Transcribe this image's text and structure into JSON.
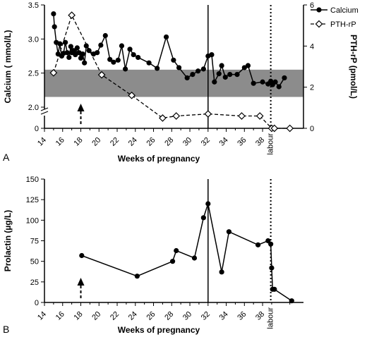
{
  "chart_data": [
    {
      "panel": "A",
      "type": "line",
      "xlabel": "Weeks of pregnancy",
      "ylabel": "Calcium ( mmol/L)",
      "y2label": "PTH-rP  (pmol/L)",
      "xticks": [
        "14",
        "16",
        "18",
        "20",
        "22",
        "24",
        "26",
        "28",
        "30",
        "32",
        "34",
        "36",
        "38"
      ],
      "xlim": [
        14,
        42.5
      ],
      "labour_label": "labour",
      "labour_week": 38.9,
      "event_week": 32,
      "arrow_week": 18,
      "y_axis_break": [
        0,
        2.0
      ],
      "ylim": [
        2.0,
        3.5
      ],
      "yticks": [
        "0",
        "2.0",
        "2.5",
        "3.0",
        "3.5"
      ],
      "y2lim": [
        0,
        6
      ],
      "y2ticks": [
        "0",
        "2",
        "4",
        "6"
      ],
      "reference_range": [
        2.15,
        2.55
      ],
      "legend_position": "top-right",
      "series": [
        {
          "name": "Calcium",
          "axis": "left",
          "marker": "filled-circle",
          "x": [
            15.0,
            15.1,
            15.3,
            15.5,
            15.7,
            15.9,
            16.1,
            16.3,
            16.5,
            16.7,
            16.9,
            17.0,
            17.2,
            17.4,
            17.6,
            17.8,
            18.0,
            18.2,
            18.4,
            18.6,
            18.9,
            19.4,
            19.8,
            20.2,
            20.7,
            21.2,
            21.6,
            22.1,
            22.5,
            22.9,
            23.4,
            23.8,
            24.3,
            25.5,
            26.4,
            27.4,
            28.2,
            28.8,
            29.7,
            30.3,
            30.9,
            31.5,
            32.0,
            32.4,
            32.7,
            33.2,
            33.5,
            33.9,
            34.4,
            35.2,
            36.0,
            36.4,
            37.0,
            38.0,
            38.6,
            38.9,
            39.1,
            39.4,
            39.8,
            40.4
          ],
          "y": [
            3.37,
            3.18,
            2.95,
            2.78,
            2.93,
            2.75,
            2.79,
            2.95,
            2.8,
            2.73,
            2.89,
            2.8,
            2.83,
            2.77,
            2.87,
            2.8,
            2.72,
            2.78,
            2.65,
            2.9,
            2.83,
            2.78,
            2.8,
            2.91,
            3.05,
            2.7,
            2.66,
            2.69,
            2.9,
            2.56,
            2.85,
            2.77,
            2.73,
            2.65,
            2.57,
            3.03,
            2.69,
            2.58,
            2.43,
            2.48,
            2.53,
            2.56,
            2.75,
            2.77,
            2.37,
            2.49,
            2.61,
            2.44,
            2.48,
            2.48,
            2.58,
            2.61,
            2.35,
            2.37,
            2.34,
            2.38,
            2.33,
            2.37,
            2.3,
            2.43
          ]
        },
        {
          "name": "PTH-rP",
          "axis": "right",
          "marker": "open-diamond",
          "x": [
            15.0,
            17.0,
            20.3,
            23.6,
            27.0,
            28.5,
            32.0,
            35.7,
            37.7,
            39.0,
            39.3,
            41.0
          ],
          "y": [
            2.7,
            5.5,
            2.6,
            1.6,
            0.5,
            0.6,
            0.7,
            0.6,
            0.6,
            0.0,
            0.0,
            0.0
          ]
        }
      ]
    },
    {
      "panel": "B",
      "type": "line",
      "xlabel": "Weeks of pregnancy",
      "ylabel": "Prolactin (µg/L)",
      "xticks": [
        "14",
        "16",
        "18",
        "20",
        "22",
        "24",
        "26",
        "28",
        "30",
        "32",
        "34",
        "36",
        "38"
      ],
      "xlim": [
        14,
        42.5
      ],
      "labour_label": "labour",
      "labour_week": 38.9,
      "event_week": 32,
      "arrow_week": 18,
      "ylim": [
        0,
        150
      ],
      "yticks": [
        "0",
        "25",
        "50",
        "75",
        "100",
        "125",
        "150"
      ],
      "series": [
        {
          "marker": "filled-circle",
          "x": [
            18.1,
            24.2,
            28.1,
            28.5,
            30.5,
            31.5,
            32.0,
            33.5,
            34.3,
            37.5,
            38.6,
            38.9,
            39.0,
            39.1,
            39.3,
            41.2
          ],
          "y": [
            57,
            32,
            50,
            63,
            54,
            103,
            120,
            37,
            86,
            70,
            75,
            71,
            42,
            16,
            16,
            2
          ]
        }
      ]
    }
  ]
}
